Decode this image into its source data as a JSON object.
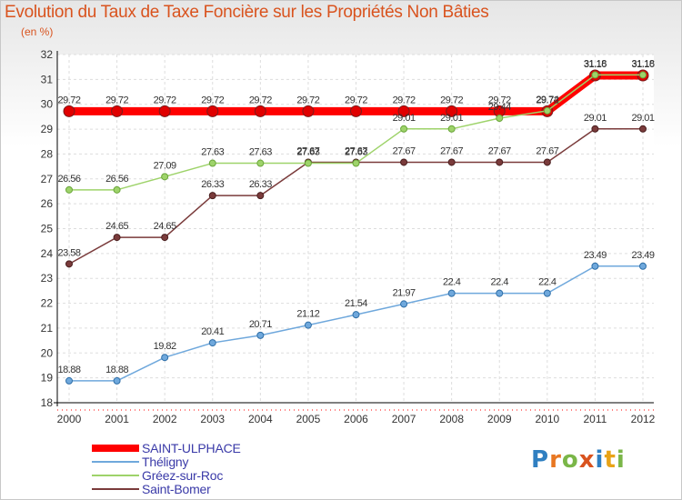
{
  "chart_data": {
    "type": "line",
    "title": "Evolution du Taux de Taxe Foncière sur les Propriétés Non Bâties",
    "ylabel": "(en %)",
    "xlabel": "",
    "ylim": [
      18,
      32
    ],
    "yticks": [
      "18",
      "19",
      "20",
      "21",
      "22",
      "23",
      "24",
      "25",
      "26",
      "27",
      "28",
      "29",
      "30",
      "31",
      "32"
    ],
    "x": [
      "2000",
      "2001",
      "2002",
      "2003",
      "2004",
      "2005",
      "2006",
      "2007",
      "2008",
      "2009",
      "2010",
      "2011",
      "2012"
    ],
    "grid": true,
    "series": [
      {
        "name": "SAINT-ULPHACE",
        "color": "#ff0000",
        "values": [
          29.72,
          29.72,
          29.72,
          29.72,
          29.72,
          29.72,
          29.72,
          29.72,
          29.72,
          29.72,
          29.72,
          31.16,
          31.16
        ],
        "labels": [
          "29.72",
          "29.72",
          "29.72",
          "29.72",
          "29.72",
          "29.72",
          "29.72",
          "29.72",
          "29.72",
          "29.72",
          "29.72",
          "31.16",
          "31.16"
        ]
      },
      {
        "name": "Théligny",
        "color": "#6fa8dc",
        "values": [
          18.88,
          18.88,
          19.82,
          20.41,
          20.71,
          21.12,
          21.54,
          21.97,
          22.4,
          22.4,
          22.4,
          23.49,
          23.49
        ],
        "labels": [
          "18.88",
          "18.88",
          "19.82",
          "20.41",
          "20.71",
          "21.12",
          "21.54",
          "21.97",
          "22.4",
          "22.4",
          "22.4",
          "23.49",
          "23.49"
        ]
      },
      {
        "name": "Gréez-sur-Roc",
        "color": "#9ed36a",
        "values": [
          26.56,
          26.56,
          27.09,
          27.63,
          27.63,
          27.63,
          27.63,
          29.01,
          29.01,
          29.44,
          29.74,
          31.18,
          31.18
        ],
        "labels": [
          "26.56",
          "26.56",
          "27.09",
          "27.63",
          "27.63",
          "27.63",
          "27.63",
          "29.01",
          "29.01",
          "29.44",
          "29.74",
          "31.18",
          "31.18"
        ]
      },
      {
        "name": "Saint-Bomer",
        "color": "#7a3b3b",
        "values": [
          23.58,
          24.65,
          24.65,
          26.33,
          26.33,
          27.67,
          27.67,
          27.67,
          27.67,
          27.67,
          27.67,
          29.01,
          29.01
        ],
        "labels": [
          "23.58",
          "24.65",
          "24.65",
          "26.33",
          "26.33",
          "27.67",
          "27.67",
          "27.67",
          "27.67",
          "27.67",
          "27.67",
          "29.01",
          "29.01"
        ]
      }
    ]
  },
  "legend": {
    "items": [
      {
        "label": "SAINT-ULPHACE",
        "color": "#ff0000"
      },
      {
        "label": "Théligny",
        "color": "#6fa8dc"
      },
      {
        "label": "Gréez-sur-Roc",
        "color": "#9ed36a"
      },
      {
        "label": "Saint-Bomer",
        "color": "#7a3b3b"
      }
    ]
  },
  "brand": {
    "letters": [
      "P",
      "r",
      "o",
      "x",
      "i",
      "t",
      "i"
    ],
    "colors": [
      "#2f7fc1",
      "#e87722",
      "#7ab648",
      "#d9531e",
      "#2f7fc1",
      "#e8a317",
      "#7ab648"
    ]
  }
}
